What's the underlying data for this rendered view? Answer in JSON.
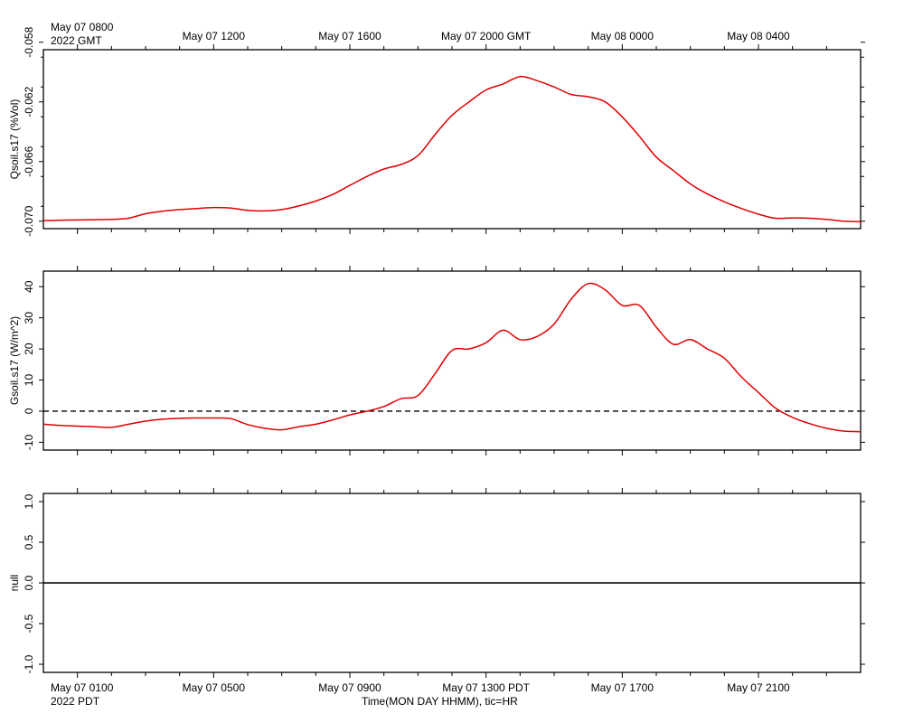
{
  "header": {
    "gmt_first_tick": "May 07 0800",
    "gmt_year": "2022 GMT",
    "pdt_first_tick": "May 07 0100",
    "pdt_year": "2022 PDT"
  },
  "top_axis_labels": [
    "May 07 1200",
    "May 07 1600",
    "May 07 2000 GMT",
    "May 08 0000",
    "May 08 0400"
  ],
  "bottom_axis_labels": [
    "May 07 0500",
    "May 07 0900",
    "May 07 1300 PDT",
    "May 07 1700",
    "May 07 2100"
  ],
  "xlabel": "Time(MON DAY HHMM), tic=HR",
  "chart_data": [
    {
      "type": "line",
      "ylabel": "Qsoil.s17 (%Vol)",
      "ylim": [
        -0.0705,
        -0.0585
      ],
      "yticks": [
        "-0.058",
        "-0.062",
        "-0.066",
        "-0.070"
      ],
      "ytick_values": [
        -0.058,
        -0.062,
        -0.066,
        -0.07
      ],
      "xlim": [
        0,
        24
      ],
      "x_units": "hours after May 07 0000 PDT",
      "series": [
        {
          "color": "#e00000",
          "x": [
            0,
            0.5,
            1,
            1.5,
            2,
            2.5,
            3,
            3.5,
            4,
            4.5,
            5,
            5.5,
            6,
            6.5,
            7,
            7.5,
            8,
            8.5,
            9,
            9.5,
            10,
            10.5,
            11,
            11.5,
            12,
            12.5,
            13,
            13.5,
            14,
            14.5,
            15,
            15.5,
            16,
            16.5,
            17,
            17.5,
            18,
            18.5,
            19,
            19.5,
            20,
            20.5,
            21,
            21.5,
            22,
            22.5,
            23,
            23.5,
            24
          ],
          "values": [
            -0.06996,
            -0.06993,
            -0.06992,
            -0.0699,
            -0.06988,
            -0.0698,
            -0.0695,
            -0.06933,
            -0.06922,
            -0.06915,
            -0.06908,
            -0.06912,
            -0.06927,
            -0.06931,
            -0.06922,
            -0.06898,
            -0.06865,
            -0.0682,
            -0.0676,
            -0.067,
            -0.0665,
            -0.0662,
            -0.0656,
            -0.0642,
            -0.0629,
            -0.062,
            -0.0612,
            -0.0608,
            -0.0603,
            -0.06058,
            -0.061,
            -0.0615,
            -0.06165,
            -0.062,
            -0.063,
            -0.0643,
            -0.0657,
            -0.0666,
            -0.0675,
            -0.06817,
            -0.0687,
            -0.06915,
            -0.06953,
            -0.0698,
            -0.06978,
            -0.0698,
            -0.06988,
            -0.07,
            -0.07003
          ]
        }
      ]
    },
    {
      "type": "line",
      "ylabel": "Gsoil.s17 (W/m^2)",
      "ylim": [
        -12.5,
        45
      ],
      "yticks": [
        "40",
        "30",
        "20",
        "10",
        "0",
        "-10"
      ],
      "ytick_values": [
        40,
        30,
        20,
        10,
        0,
        -10
      ],
      "xlim": [
        0,
        24
      ],
      "x_units": "hours after May 07 0000 PDT",
      "reference_line": {
        "value": 0,
        "style": "dashed"
      },
      "series": [
        {
          "color": "#e00000",
          "x": [
            0,
            0.5,
            1,
            1.5,
            2,
            2.5,
            3,
            3.5,
            4,
            4.5,
            5,
            5.5,
            6,
            6.5,
            7,
            7.5,
            8,
            8.5,
            9,
            9.5,
            10,
            10.5,
            11,
            11.5,
            12,
            12.5,
            13,
            13.5,
            14,
            14.5,
            15,
            15.5,
            16,
            16.5,
            17,
            17.5,
            18,
            18.5,
            19,
            19.5,
            20,
            20.5,
            21,
            21.5,
            22,
            22.5,
            23,
            23.5,
            24
          ],
          "values": [
            -4.2,
            -4.6,
            -4.8,
            -5.0,
            -5.2,
            -4.2,
            -3.2,
            -2.6,
            -2.3,
            -2.2,
            -2.2,
            -2.4,
            -4.3,
            -5.5,
            -6.0,
            -5.0,
            -4.2,
            -2.8,
            -1.2,
            0.0,
            1.5,
            4.0,
            5.0,
            12.0,
            19.5,
            20.0,
            22.0,
            26.0,
            23.0,
            24.0,
            28.0,
            36.0,
            41.0,
            39.0,
            34.0,
            34.0,
            27.0,
            21.5,
            23.0,
            20.0,
            17.0,
            11.0,
            6.0,
            1.0,
            -2.0,
            -4.0,
            -5.5,
            -6.4,
            -6.6
          ]
        }
      ]
    },
    {
      "type": "line",
      "ylabel": "null",
      "ylim": [
        -1.1,
        1.1
      ],
      "yticks": [
        "1.0",
        "0.5",
        "0.0",
        "-0.5",
        "-1.0"
      ],
      "ytick_values": [
        1.0,
        0.5,
        0.0,
        -0.5,
        -1.0
      ],
      "xlim": [
        0,
        24
      ],
      "x_units": "hours after May 07 0000 PDT",
      "series": [
        {
          "color": "#000000",
          "x": [
            0,
            24
          ],
          "values": [
            0,
            0
          ]
        }
      ]
    }
  ]
}
